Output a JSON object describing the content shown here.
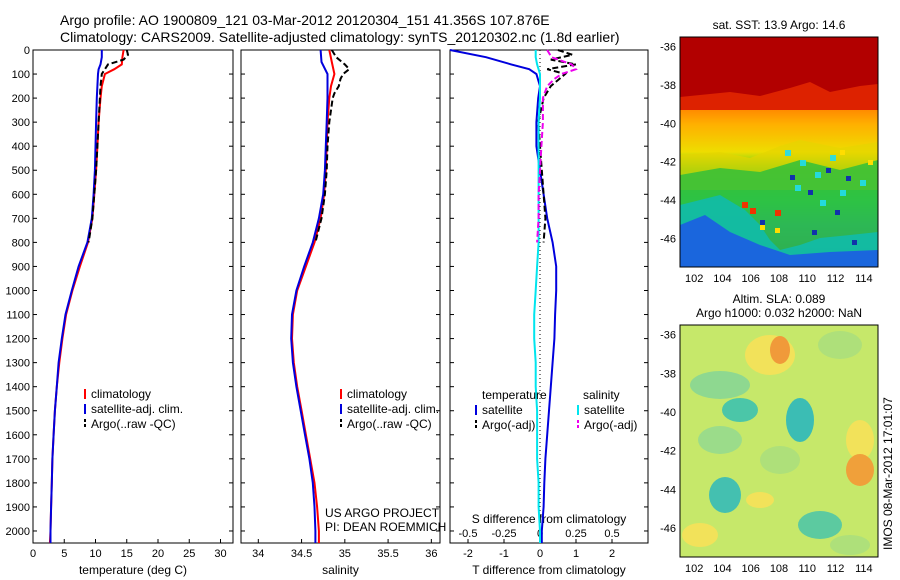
{
  "title_line1": "Argo profile: AO 1900809_121 03-Mar-2012 20120304_151 41.356S 107.876E",
  "title_line2": "Climatology: CARS2009. Satellite-adjusted climatology: synTS_20120302.nc (1.8d earlier)",
  "project_line1": "US ARGO PROJECT",
  "project_line2": "PI: DEAN ROEMMICH",
  "timestamp": "IMOS 08-Mar-2012 17:01:07",
  "colors": {
    "climatology": "#ff0000",
    "satellite": "#0000dd",
    "argo": "#000000",
    "sat_salt": "#00e5ee",
    "argo_salt": "#ee00ee"
  },
  "chart_data": [
    {
      "type": "line",
      "xlabel": "temperature (deg C)",
      "xlim": [
        0,
        32
      ],
      "ylim": [
        0,
        2050
      ],
      "xticks": [
        "0",
        "5",
        "10",
        "15",
        "20",
        "25",
        "30"
      ],
      "yticks": [
        "0",
        "100",
        "200",
        "300",
        "400",
        "500",
        "600",
        "700",
        "800",
        "900",
        "1000",
        "1100",
        "1200",
        "1300",
        "1400",
        "1500",
        "1600",
        "1700",
        "1800",
        "1900",
        "2000"
      ],
      "legend": [
        "climatology",
        "satellite-adj. clim.",
        "Argo(..raw -QC)"
      ],
      "series": [
        {
          "name": "climatology",
          "y": [
            0,
            30,
            60,
            80,
            100,
            150,
            200,
            300,
            400,
            500,
            600,
            700,
            800,
            900,
            1000,
            1100,
            1200,
            1300,
            1400,
            1500,
            1600,
            1700,
            1800,
            1900,
            2000,
            2050
          ],
          "x": [
            14.5,
            14.3,
            14.2,
            13.0,
            11.5,
            11.0,
            10.8,
            10.5,
            10.3,
            10.1,
            9.8,
            9.5,
            8.8,
            7.5,
            6.3,
            5.3,
            4.7,
            4.2,
            3.8,
            3.5,
            3.3,
            3.1,
            3.0,
            2.9,
            2.8,
            2.7
          ]
        },
        {
          "name": "satellite-adj. clim.",
          "y": [
            0,
            30,
            60,
            80,
            100,
            150,
            200,
            300,
            400,
            500,
            600,
            700,
            800,
            900,
            1000,
            1100,
            1200,
            1300,
            1400,
            1500,
            1600,
            1700,
            1800,
            1900,
            2000,
            2050
          ],
          "x": [
            11.0,
            11.0,
            10.8,
            10.5,
            10.4,
            10.3,
            10.2,
            10.1,
            10.0,
            9.9,
            9.7,
            9.4,
            8.7,
            7.3,
            6.2,
            5.2,
            4.6,
            4.1,
            3.8,
            3.5,
            3.3,
            3.1,
            3.0,
            2.9,
            2.8,
            2.8
          ]
        },
        {
          "name": "Argo(..raw -QC)",
          "y": [
            0,
            20,
            40,
            60,
            80,
            100,
            150,
            200,
            300,
            400,
            500,
            600,
            700,
            800
          ],
          "x": [
            15.0,
            15.2,
            14.5,
            12.0,
            11.5,
            11.0,
            10.8,
            10.7,
            10.5,
            10.3,
            10.1,
            9.8,
            9.5,
            8.9
          ]
        }
      ]
    },
    {
      "type": "line",
      "xlabel": "salinity",
      "xlim": [
        33.8,
        36.1
      ],
      "ylim": [
        0,
        2050
      ],
      "xticks": [
        "34",
        "34.5",
        "35",
        "35.5",
        "36"
      ],
      "legend": [
        "climatology",
        "satellite-adj. clim.",
        "Argo(..raw -QC)"
      ],
      "series": [
        {
          "name": "climatology",
          "y": [
            0,
            50,
            100,
            150,
            200,
            300,
            400,
            500,
            600,
            700,
            800,
            900,
            1000,
            1100,
            1200,
            1300,
            1400,
            1500,
            1600,
            1700,
            1800,
            1900,
            2000,
            2050
          ],
          "x": [
            34.82,
            34.85,
            34.88,
            34.84,
            34.82,
            34.8,
            34.79,
            34.78,
            34.76,
            34.72,
            34.65,
            34.55,
            34.45,
            34.4,
            34.39,
            34.41,
            34.45,
            34.5,
            34.55,
            34.6,
            34.65,
            34.68,
            34.7,
            34.7
          ]
        },
        {
          "name": "satellite-adj. clim.",
          "y": [
            0,
            50,
            100,
            150,
            200,
            300,
            400,
            500,
            600,
            700,
            800,
            900,
            1000,
            1100,
            1200,
            1300,
            1400,
            1500,
            1600,
            1700,
            1800,
            1900,
            2000,
            2050
          ],
          "x": [
            34.72,
            34.73,
            34.8,
            34.8,
            34.8,
            34.79,
            34.78,
            34.77,
            34.75,
            34.7,
            34.63,
            34.53,
            34.44,
            34.39,
            34.38,
            34.4,
            34.44,
            34.49,
            34.54,
            34.59,
            34.63,
            34.65,
            34.66,
            34.66
          ]
        },
        {
          "name": "Argo(..raw -QC)",
          "y": [
            0,
            30,
            60,
            80,
            100,
            120,
            150,
            180,
            200,
            300,
            400,
            500,
            600,
            700,
            800
          ],
          "x": [
            34.85,
            34.9,
            35.0,
            35.05,
            34.98,
            34.95,
            34.93,
            34.88,
            34.86,
            34.82,
            34.8,
            34.79,
            34.77,
            34.73,
            34.66
          ]
        }
      ]
    },
    {
      "type": "line",
      "xlabel": "T difference from climatology",
      "x2label": "S difference from climatology",
      "xlim": [
        -2.5,
        3.0
      ],
      "ylim": [
        0,
        2050
      ],
      "xticks": [
        "-2",
        "-1",
        "0",
        "1",
        "2"
      ],
      "x2ticks": [
        "-0.5",
        "-0.25",
        "0",
        "0.25",
        "0.5"
      ],
      "legend_headers": [
        "temperature",
        "salinity"
      ],
      "legend": [
        "satellite",
        "Argo(-adj)",
        "satellite",
        "Argo(-adj)"
      ],
      "series": [
        {
          "name": "satellite",
          "y": [
            0,
            30,
            60,
            80,
            100,
            150,
            200,
            300,
            400,
            500,
            600,
            700,
            800,
            900,
            1000,
            1100,
            1200,
            1300,
            1400,
            1500,
            1600,
            1700,
            1800,
            1900,
            2000,
            2050
          ],
          "x": [
            -3.5,
            -1.5,
            -0.8,
            -0.3,
            -0.1,
            0.0,
            -0.05,
            -0.1,
            -0.1,
            0.0,
            0.1,
            0.2,
            0.35,
            0.45,
            0.45,
            0.42,
            0.4,
            0.35,
            0.3,
            0.25,
            0.2,
            0.15,
            0.12,
            0.1,
            0.05,
            0.05
          ]
        },
        {
          "name": "Argo(-adj)",
          "y": [
            0,
            20,
            40,
            60,
            80,
            100,
            150,
            200,
            300,
            400,
            500,
            600,
            700,
            800
          ],
          "x": [
            0.5,
            0.9,
            0.3,
            1.0,
            0.2,
            0.7,
            0.3,
            0.1,
            -0.05,
            0.0,
            0.05,
            0.1,
            0.15,
            0.1
          ]
        },
        {
          "name": "satellite",
          "y": [
            0,
            30,
            60,
            100,
            150,
            200,
            300,
            400,
            500,
            600,
            700,
            800,
            900,
            1000,
            1100,
            1200,
            1300,
            1400,
            1500,
            1600,
            1700,
            1800,
            1900,
            2000,
            2050
          ],
          "x": [
            -0.03,
            -0.03,
            -0.02,
            0.0,
            0.0,
            0.0,
            -0.01,
            -0.01,
            -0.01,
            -0.01,
            -0.01,
            -0.01,
            -0.02,
            -0.03,
            -0.04,
            -0.04,
            -0.03,
            -0.03,
            -0.02,
            -0.02,
            -0.02,
            -0.01,
            -0.01,
            0.0,
            0.0
          ]
        },
        {
          "name": "Argo(-adj)",
          "y": [
            0,
            30,
            60,
            80,
            100,
            120,
            150,
            200,
            300,
            400,
            500,
            600,
            700,
            800
          ],
          "x": [
            0.05,
            0.08,
            0.22,
            0.25,
            0.15,
            0.1,
            0.05,
            0.02,
            0.02,
            0.01,
            0.0,
            -0.01,
            -0.01,
            -0.02
          ]
        }
      ]
    },
    {
      "type": "heatmap",
      "title": "sat. SST: 13.9 Argo: 14.6",
      "xticks": [
        "102",
        "104",
        "106",
        "108",
        "110",
        "112",
        "114"
      ],
      "yticks": [
        "-36",
        "-38",
        "-40",
        "-42",
        "-44",
        "-46"
      ],
      "xlim": [
        101,
        115
      ],
      "ylim": [
        -47.5,
        -35.5
      ],
      "argo_position": [
        107.9,
        -41.36
      ]
    },
    {
      "type": "heatmap",
      "title_line1": "Altim. SLA: 0.089",
      "title_line2": "Argo h1000: 0.032 h2000: NaN",
      "xticks": [
        "102",
        "104",
        "106",
        "108",
        "110",
        "112",
        "114"
      ],
      "yticks": [
        "-36",
        "-38",
        "-40",
        "-42",
        "-44",
        "-46"
      ],
      "xlim": [
        101,
        115
      ],
      "ylim": [
        -47.5,
        -35.5
      ],
      "argo_position": [
        107.9,
        -41.36
      ]
    }
  ]
}
